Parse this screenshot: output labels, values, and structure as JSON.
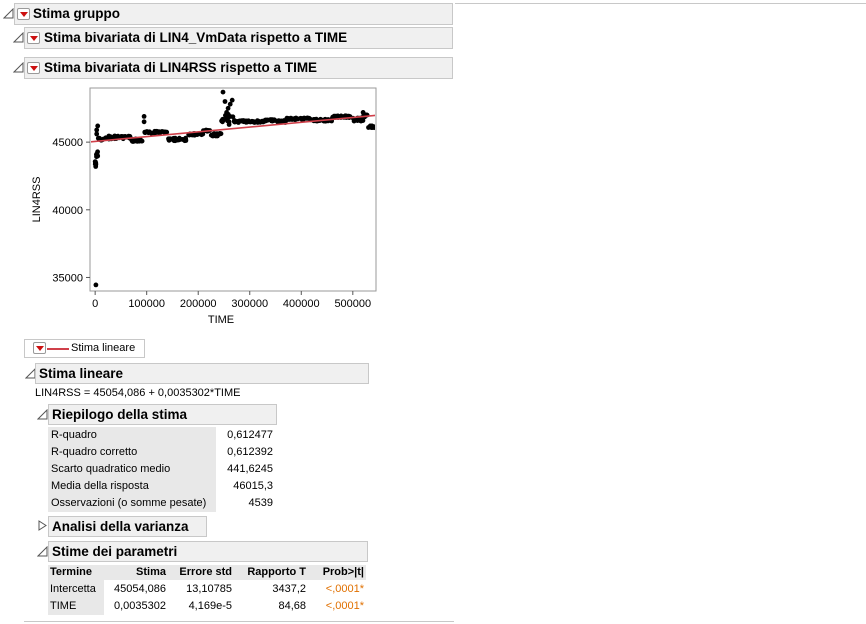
{
  "report": {
    "group_title": "Stima gruppo",
    "section1_title": "Stima bivariata di LIN4_VmData rispetto a TIME",
    "section2_title": "Stima bivariata di LIN4RSS rispetto a TIME"
  },
  "chart_data": {
    "type": "scatter",
    "xlabel": "TIME",
    "ylabel": "LIN4RSS",
    "xlim": [
      -10000,
      545000
    ],
    "ylim": [
      34000,
      49000
    ],
    "x_ticks": [
      "0",
      "100000",
      "200000",
      "300000",
      "400000",
      "500000"
    ],
    "x_tick_values": [
      0,
      100000,
      200000,
      300000,
      400000,
      500000
    ],
    "y_ticks": [
      "35000",
      "40000",
      "45000"
    ],
    "y_tick_values": [
      35000,
      40000,
      45000
    ],
    "fit_line": {
      "intercept": 45054.086,
      "slope": 0.0035302,
      "color": "#d0404a"
    },
    "points_color": "#000000",
    "segments": [
      [
        0,
        2000,
        43300,
        43600
      ],
      [
        2000,
        5000,
        43900,
        44300
      ],
      [
        5000,
        20000,
        45100,
        45300
      ],
      [
        20000,
        35000,
        45200,
        45500
      ],
      [
        35000,
        70000,
        45250,
        45450
      ],
      [
        70000,
        95000,
        45050,
        45250
      ],
      [
        95000,
        140000,
        45650,
        45800
      ],
      [
        140000,
        180000,
        45100,
        45300
      ],
      [
        180000,
        210000,
        45500,
        45650
      ],
      [
        210000,
        225000,
        45800,
        45900
      ],
      [
        225000,
        245000,
        45450,
        45650
      ],
      [
        245000,
        270000,
        46400,
        47100
      ],
      [
        270000,
        330000,
        46450,
        46600
      ],
      [
        330000,
        350000,
        46550,
        46700
      ],
      [
        350000,
        370000,
        46450,
        46600
      ],
      [
        370000,
        420000,
        46650,
        46800
      ],
      [
        420000,
        460000,
        46550,
        46700
      ],
      [
        460000,
        500000,
        46800,
        46950
      ],
      [
        500000,
        520000,
        46550,
        46800
      ],
      [
        520000,
        530000,
        46850,
        47150
      ],
      [
        530000,
        545000,
        46050,
        46200
      ]
    ],
    "points": [
      [
        1500,
        34450
      ],
      [
        1000,
        43200
      ],
      [
        3000,
        45900
      ],
      [
        5000,
        46200
      ],
      [
        3000,
        45600
      ],
      [
        38000,
        45450
      ],
      [
        95000,
        46500
      ],
      [
        95000,
        46900
      ],
      [
        248000,
        48700
      ],
      [
        252000,
        48000
      ],
      [
        258000,
        47500
      ],
      [
        262000,
        47800
      ],
      [
        266000,
        48100
      ],
      [
        255000,
        47200
      ],
      [
        260000,
        46300
      ],
      [
        520000,
        47200
      ]
    ]
  },
  "legend": {
    "label": "Stima lineare"
  },
  "fit": {
    "title": "Stima lineare",
    "equation": "LIN4RSS = 45054,086 + 0,0035302*TIME",
    "summary_title": "Riepilogo della stima",
    "summary_rows": [
      {
        "label": "R-quadro",
        "value": "0,612477"
      },
      {
        "label": "R-quadro corretto",
        "value": "0,612392"
      },
      {
        "label": "Scarto quadratico medio",
        "value": "441,6245"
      },
      {
        "label": "Media della risposta",
        "value": "46015,3"
      },
      {
        "label": "Osservazioni (o somme pesate)",
        "value": "4539"
      }
    ],
    "anova_title": "Analisi della varianza",
    "params_title": "Stime dei parametri",
    "params_headers": [
      "Termine",
      "Stima",
      "Errore std",
      "Rapporto T",
      "Prob>|t|"
    ],
    "params_rows": [
      [
        "Intercetta",
        "45054,086",
        "13,10785",
        "3437,2",
        "<,0001*"
      ],
      [
        "TIME",
        "0,0035302",
        "4,169e-5",
        "84,68",
        "<,0001*"
      ]
    ]
  }
}
